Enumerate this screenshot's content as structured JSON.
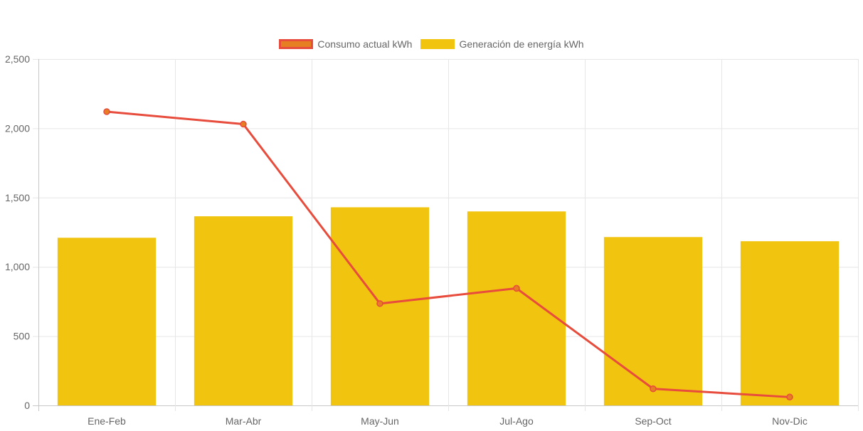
{
  "chart_data": {
    "type": "bar",
    "categories": [
      "Ene-Feb",
      "Mar-Abr",
      "May-Jun",
      "Jul-Ago",
      "Sep-Oct",
      "Nov-Dic"
    ],
    "ylim": [
      0,
      2500
    ],
    "yticks": [
      0,
      500,
      1000,
      1500,
      2000,
      2500
    ],
    "ytick_labels": [
      "0",
      "500",
      "1,000",
      "1,500",
      "2,000",
      "2,500"
    ],
    "grid": true,
    "legend_position": "top-center",
    "series": [
      {
        "name": "Consumo actual kWh",
        "type": "line",
        "values": [
          2120,
          2030,
          735,
          845,
          120,
          60
        ],
        "color": "#e74c3c",
        "point_fill": "#e67e22"
      },
      {
        "name": "Generación de energía kWh",
        "type": "bar",
        "values": [
          1210,
          1365,
          1430,
          1400,
          1215,
          1185
        ],
        "color": "#f1c40f"
      }
    ]
  }
}
